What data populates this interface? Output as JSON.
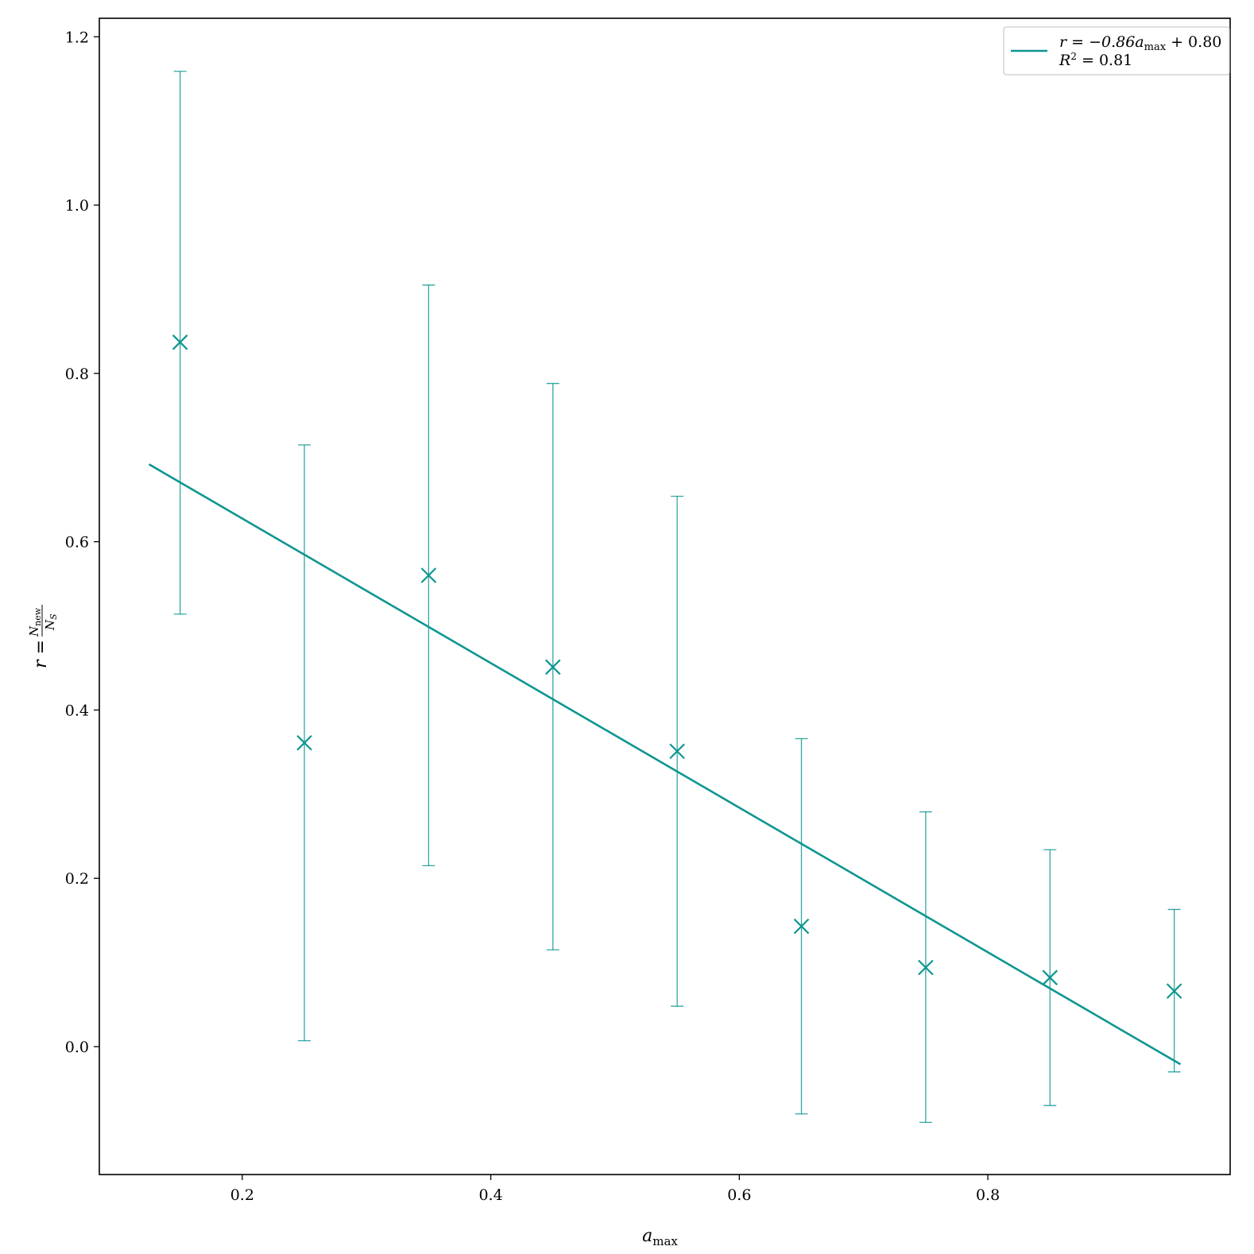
{
  "chart_data": {
    "type": "scatter",
    "title": "",
    "xlabel": "a",
    "xlabel_sub": "max",
    "ylabel": "r = N_new / N_S",
    "ylabel_parts": {
      "r": "r =",
      "num": "N",
      "num_sub": "new",
      "den": "N",
      "den_sub": "S"
    },
    "xlim": [
      0.085,
      0.995
    ],
    "ylim": [
      -0.152,
      1.222
    ],
    "xticks": [
      0.2,
      0.4,
      0.6,
      0.8
    ],
    "xtick_labels": [
      "0.2",
      "0.4",
      "0.6",
      "0.8"
    ],
    "yticks": [
      0.0,
      0.2,
      0.4,
      0.6,
      0.8,
      1.0,
      1.2
    ],
    "ytick_labels": [
      "0.0",
      "0.2",
      "0.4",
      "0.6",
      "0.8",
      "1.0",
      "1.2"
    ],
    "grid": false,
    "legend_position": "top-right",
    "color": "#0e9690",
    "series": [
      {
        "type": "errorbar",
        "marker": "x",
        "x": [
          0.15,
          0.25,
          0.35,
          0.45,
          0.55,
          0.65,
          0.75,
          0.85,
          0.95
        ],
        "y": [
          0.837,
          0.361,
          0.56,
          0.451,
          0.351,
          0.143,
          0.094,
          0.082,
          0.066
        ],
        "yerr_low": [
          0.514,
          0.007,
          0.215,
          0.115,
          0.048,
          -0.08,
          -0.09,
          -0.07,
          -0.03
        ],
        "yerr_high": [
          1.159,
          0.715,
          0.905,
          0.788,
          0.654,
          0.366,
          0.279,
          0.234,
          0.163
        ]
      },
      {
        "type": "line",
        "name": "r = −0.86a_max + 0.80, R² = 0.81",
        "x": [
          0.125,
          0.955
        ],
        "y": [
          0.692,
          -0.021
        ]
      }
    ],
    "legend": {
      "line1_pre": "r = −0.86a",
      "line1_sub": "max",
      "line1_post": " + 0.80",
      "line2_pre": "R",
      "line2_sup": "2",
      "line2_post": " = 0.81"
    }
  }
}
